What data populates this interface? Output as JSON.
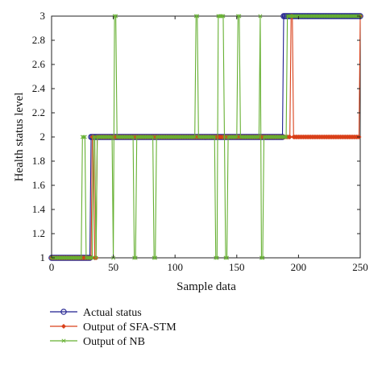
{
  "chart_data": {
    "type": "line",
    "xlabel": "Sample data",
    "ylabel": "Health status level",
    "xlim": [
      0,
      250
    ],
    "ylim": [
      1,
      3
    ],
    "xticks": [
      "0",
      "50",
      "100",
      "150",
      "200",
      "250"
    ],
    "yticks": [
      "1",
      "1.2",
      "1.4",
      "1.6",
      "1.8",
      "2",
      "2.2",
      "2.4",
      "2.6",
      "2.8",
      "3"
    ],
    "grid": false,
    "legend_position": "bottom-left",
    "series": [
      {
        "name": "Actual status",
        "color": "#1f1f8f",
        "marker": "circle",
        "x": [
          0,
          32,
          32,
          188,
          188,
          250
        ],
        "y": [
          1,
          1,
          2,
          2,
          3,
          3
        ]
      },
      {
        "name": "Output of SFA-STM",
        "color": "#d9401a",
        "marker": "diamond",
        "x": [
          0,
          33,
          33,
          35,
          35,
          37,
          37,
          194,
          194,
          196,
          196,
          250
        ],
        "y": [
          1,
          1,
          2,
          2,
          1,
          1,
          2,
          2,
          3,
          3,
          2,
          3
        ]
      },
      {
        "name": "Output of NB",
        "color": "#66b032",
        "marker": "x",
        "x": [
          0,
          24,
          25,
          27,
          28,
          33,
          34,
          36,
          37,
          50,
          51,
          53,
          66,
          67,
          69,
          82,
          83,
          85,
          116,
          117,
          119,
          132,
          133,
          135,
          140,
          141,
          143,
          150,
          151,
          153,
          169,
          170,
          172,
          190,
          191,
          250
        ],
        "y": [
          1,
          1,
          2,
          2,
          1,
          1,
          2,
          1,
          2,
          1,
          3,
          2,
          2,
          1,
          2,
          2,
          1,
          2,
          2,
          3,
          2,
          2,
          1,
          3,
          2,
          1,
          2,
          2,
          3,
          2,
          3,
          1,
          2,
          2,
          3,
          3
        ]
      }
    ]
  }
}
